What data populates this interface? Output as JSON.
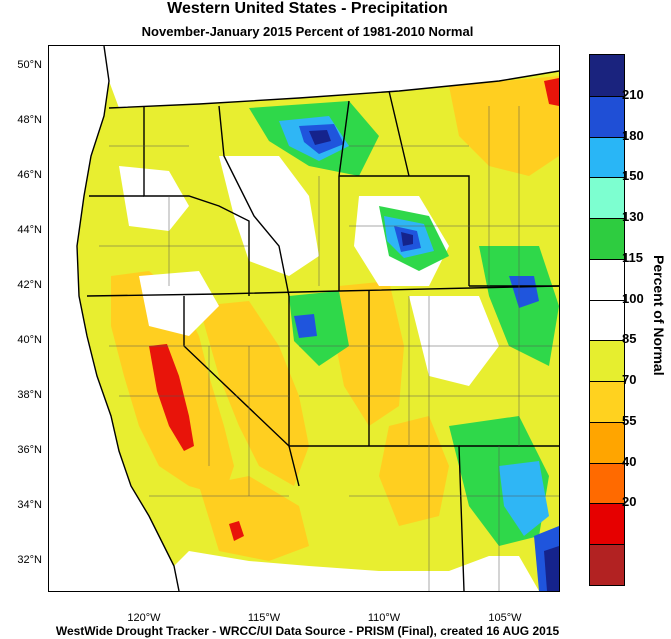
{
  "title": "Western United States - Precipitation",
  "subtitle": "November-January 2015  Percent of 1981-2010 Normal",
  "footer": "WestWide Drought Tracker - WRCC/UI  Data Source - PRISM (Final), created 16 AUG 2015",
  "colorbar": {
    "title": "Percent of Normal",
    "labels": [
      "210",
      "180",
      "150",
      "130",
      "115",
      "100",
      "85",
      "70",
      "55",
      "40",
      "20"
    ],
    "colors": [
      "#1a237e",
      "#1f4fd6",
      "#29b6f6",
      "#7dffd0",
      "#2ecc40",
      "#ffffff",
      "#ffffff",
      "#e6ee2f",
      "#ffd21f",
      "#ffa500",
      "#ff6a00",
      "#e60000",
      "#b22222"
    ]
  },
  "lat_labels": [
    "50°N",
    "48°N",
    "46°N",
    "44°N",
    "42°N",
    "40°N",
    "38°N",
    "36°N",
    "34°N",
    "32°N"
  ],
  "lon_labels": [
    "120°W",
    "115°W",
    "110°W",
    "105°W"
  ],
  "colors": {
    "ocean": "#ffffff",
    "yellow": "#e8ee30",
    "orange": "#ffcf20",
    "dark_orange": "#ff9d00",
    "red": "#e8140a",
    "green": "#2fd84a",
    "light_green": "#82ffb0",
    "cyan": "#2fb6f5",
    "blue": "#1f55dd",
    "navy": "#15238c"
  }
}
